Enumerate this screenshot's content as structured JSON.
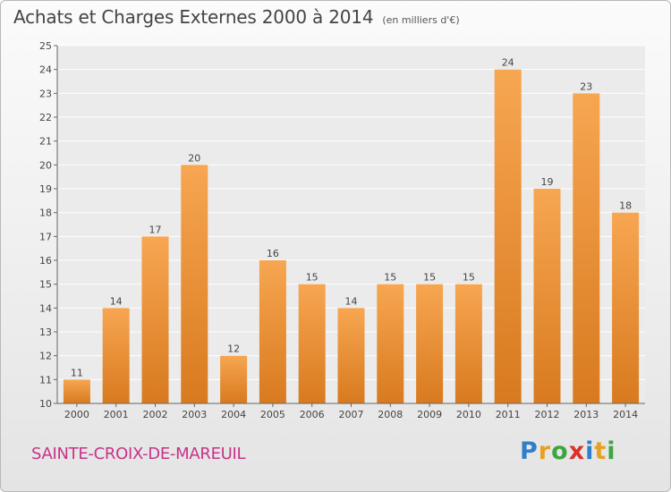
{
  "title": {
    "main": "Achats et Charges Externes 2000 à 2014",
    "sub": "(en milliers d'€)"
  },
  "footer": {
    "commune": "SAINTE-CROIX-DE-MAREUIL"
  },
  "logo": {
    "text": "Proxiti",
    "letters": [
      {
        "ch": "P",
        "color": "#2f7fc8"
      },
      {
        "ch": "r",
        "color": "#e8a020"
      },
      {
        "ch": "o",
        "color": "#3ea540"
      },
      {
        "ch": "x",
        "color": "#d9332b"
      },
      {
        "ch": "i",
        "color": "#2f7fc8"
      },
      {
        "ch": "t",
        "color": "#e8a020"
      },
      {
        "ch": "i",
        "color": "#3ea540"
      }
    ]
  },
  "colors": {
    "bar_top": "#f7a651",
    "bar_bottom": "#d87a1f",
    "commune_text": "#c8338a"
  },
  "chart_data": {
    "type": "bar",
    "categories": [
      "2000",
      "2001",
      "2002",
      "2003",
      "2004",
      "2005",
      "2006",
      "2007",
      "2008",
      "2009",
      "2010",
      "2011",
      "2012",
      "2013",
      "2014"
    ],
    "values": [
      11,
      14,
      17,
      20,
      12,
      16,
      15,
      14,
      15,
      15,
      15,
      24,
      19,
      23,
      18
    ],
    "ylim": [
      10,
      25
    ],
    "yticks": [
      10,
      11,
      12,
      13,
      14,
      15,
      16,
      17,
      18,
      19,
      20,
      21,
      22,
      23,
      24,
      25
    ],
    "grid": true,
    "legend": "none"
  }
}
